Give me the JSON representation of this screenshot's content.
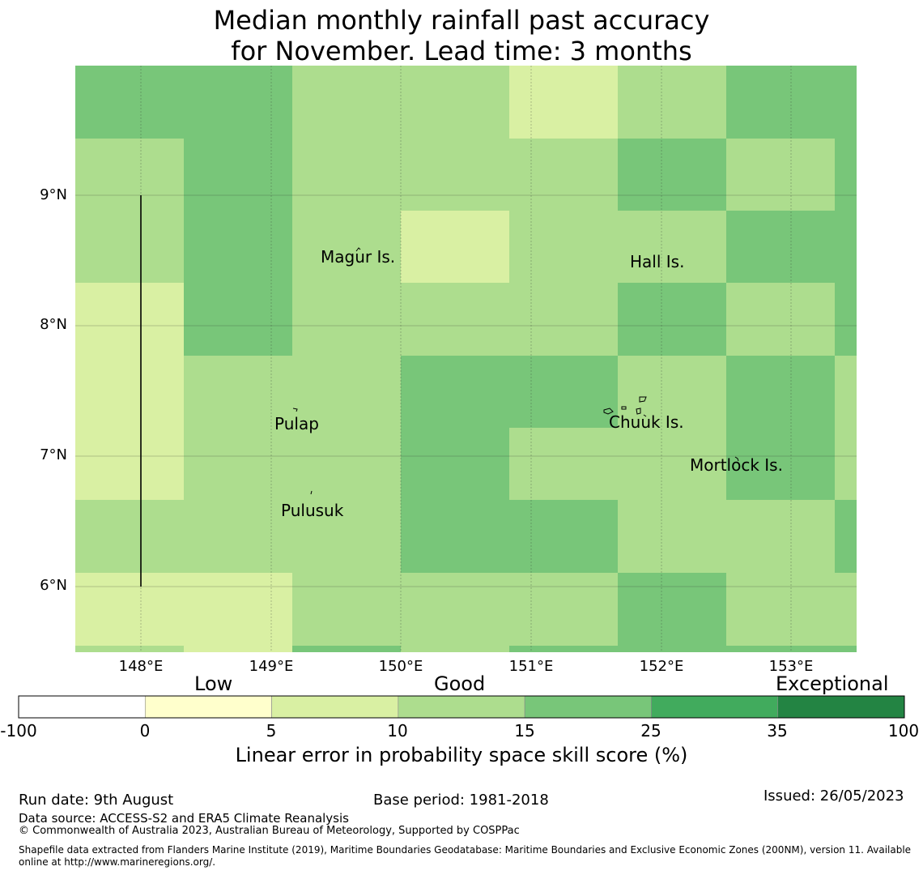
{
  "title_line1": "Median monthly rainfall past accuracy",
  "title_line2": "for November. Lead time: 3 months",
  "map": {
    "lat_ticks": [
      "9°N",
      "8°N",
      "7°N",
      "6°N"
    ],
    "lon_ticks": [
      "148°E",
      "149°E",
      "150°E",
      "151°E",
      "152°E",
      "153°E"
    ],
    "lon_range": [
      147.5,
      153.5
    ],
    "lat_range": [
      5.5,
      10.0
    ],
    "grid": true,
    "skill_grid_rows_top_to_bottom": [
      [
        25,
        25,
        15,
        15,
        10,
        15,
        25,
        25
      ],
      [
        15,
        25,
        15,
        15,
        15,
        25,
        15,
        25
      ],
      [
        15,
        25,
        15,
        10,
        15,
        15,
        25,
        25
      ],
      [
        10,
        25,
        15,
        15,
        15,
        25,
        15,
        25
      ],
      [
        10,
        15,
        15,
        25,
        25,
        15,
        25,
        15
      ],
      [
        10,
        15,
        15,
        25,
        15,
        15,
        25,
        15
      ],
      [
        15,
        15,
        15,
        25,
        25,
        15,
        15,
        25
      ],
      [
        10,
        10,
        15,
        15,
        15,
        25,
        15,
        15
      ],
      [
        15,
        10,
        25,
        15,
        25,
        25,
        25,
        25
      ]
    ],
    "places": [
      {
        "name": "Magur Is."
      },
      {
        "name": "Hall Is."
      },
      {
        "name": "Pulap"
      },
      {
        "name": "Chuuk Is."
      },
      {
        "name": "Mortlock Is."
      },
      {
        "name": "Pulusuk"
      }
    ]
  },
  "colorbar": {
    "categories": [
      "Low",
      "Good",
      "Exceptional"
    ],
    "ticks": [
      "-100",
      "0",
      "5",
      "10",
      "15",
      "25",
      "35",
      "100"
    ],
    "colors": [
      "#ffffff",
      "#ffffcc",
      "#d9f0a3",
      "#addd8e",
      "#78c679",
      "#41ab5d",
      "#238443"
    ],
    "label": "Linear error in probability space skill score (%)"
  },
  "footer": {
    "run_date": "Run date: 9th August",
    "base_period": "Base period: 1981-2018",
    "issued": "Issued: 26/05/2023",
    "data_source": "Data source: ACCESS-S2 and ERA5 Climate Reanalysis",
    "copyright": "© Commonwealth of Australia 2023, Australian Bureau of Meteorology, Supported by COSPPac",
    "shapefile_line1": "Shapefile data extracted from Flanders Marine Institute (2019), Maritime Boundaries Geodatabase: Maritime Boundaries and Exclusive Economic Zones (200NM), version 11. Available",
    "shapefile_line2": "online at http://www.marineregions.org/."
  }
}
